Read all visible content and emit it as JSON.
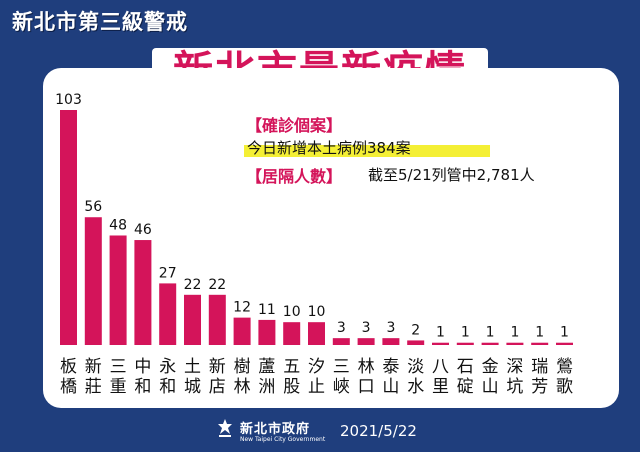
{
  "header": {
    "badge": "新北市第三級警戒",
    "title": "新北市最新疫情"
  },
  "info": {
    "confirmed_label": "【確診個案】",
    "confirmed_text": "今日新增本土病例384案",
    "isolation_label": "【居隔人數】",
    "isolation_text": "截至5/21列管中2,781人"
  },
  "footer": {
    "org": "新北市政府",
    "org_en": "New Taipei City Government",
    "date": "2021/5/22"
  },
  "colors": {
    "bar": "#d4145a",
    "accent": "#d4145a",
    "background": "#1f3e7d",
    "highlight": "#f4ef35"
  },
  "chart_data": {
    "type": "bar",
    "categories": [
      "板橋",
      "新莊",
      "三重",
      "中和",
      "永和",
      "土城",
      "新店",
      "樹林",
      "蘆洲",
      "五股",
      "汐止",
      "三峽",
      "林口",
      "泰山",
      "淡水",
      "八里",
      "石碇",
      "金山",
      "深坑",
      "瑞芳",
      "鶯歌"
    ],
    "values": [
      103,
      56,
      48,
      46,
      27,
      22,
      22,
      12,
      11,
      10,
      10,
      3,
      3,
      3,
      2,
      1,
      1,
      1,
      1,
      1,
      1
    ],
    "title": "",
    "xlabel": "",
    "ylabel": "",
    "ylim": [
      0,
      103
    ],
    "grid": false,
    "legend": "none"
  }
}
